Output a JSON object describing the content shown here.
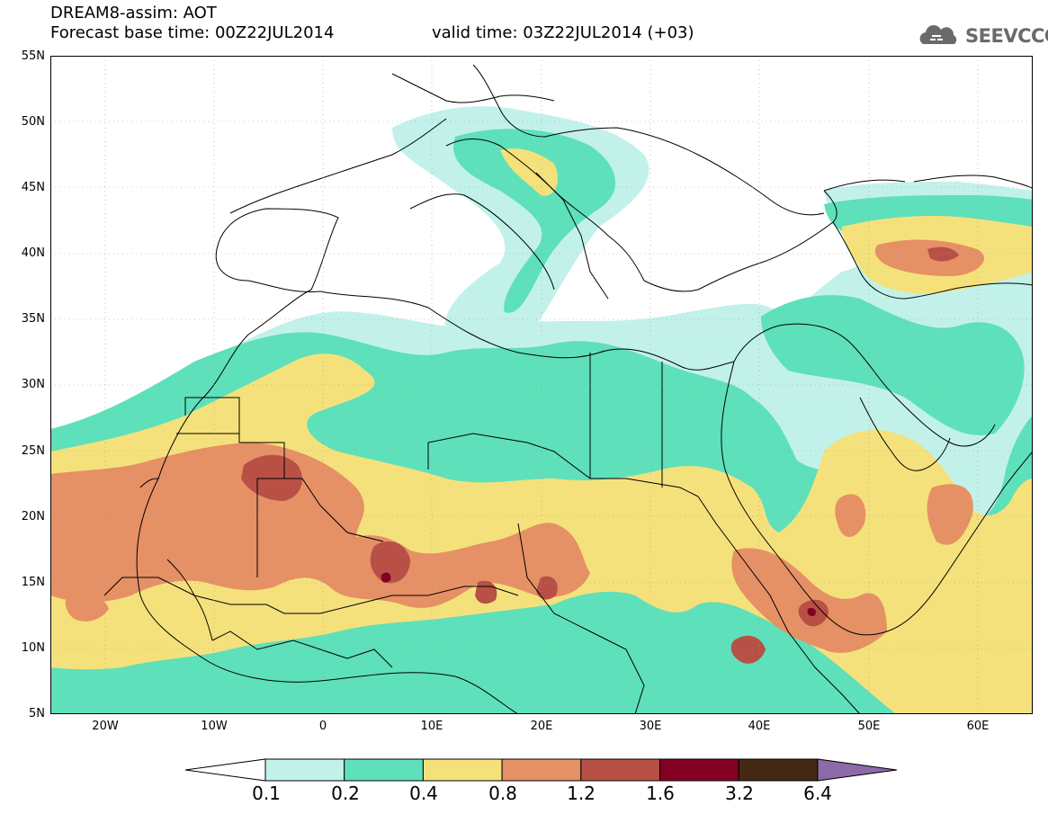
{
  "title": {
    "line1": "DREAM8-assim: AOT",
    "line2": "Forecast base time: 00Z22JUL2014",
    "valid": "valid time: 03Z22JUL2014 (+03)"
  },
  "logo": {
    "text": "SEEVCCC",
    "icon": "cloud-icon"
  },
  "map": {
    "lon_range": [
      -25,
      65
    ],
    "lat_range": [
      5,
      55
    ],
    "lat_ticks": [
      "55N",
      "50N",
      "45N",
      "40N",
      "35N",
      "30N",
      "25N",
      "20N",
      "15N",
      "10N",
      "5N"
    ],
    "lon_ticks": [
      "20W",
      "10W",
      "0",
      "10E",
      "20E",
      "30E",
      "40E",
      "50E",
      "60E"
    ]
  },
  "legend": {
    "levels": [
      "0.1",
      "0.2",
      "0.4",
      "0.8",
      "1.2",
      "1.6",
      "3.2",
      "6.4"
    ],
    "colors": [
      "#ffffff",
      "#c2f1ea",
      "#5ee0bb",
      "#f5e17b",
      "#e69066",
      "#b85046",
      "#840023",
      "#432912",
      "#8d6aa8"
    ]
  }
}
